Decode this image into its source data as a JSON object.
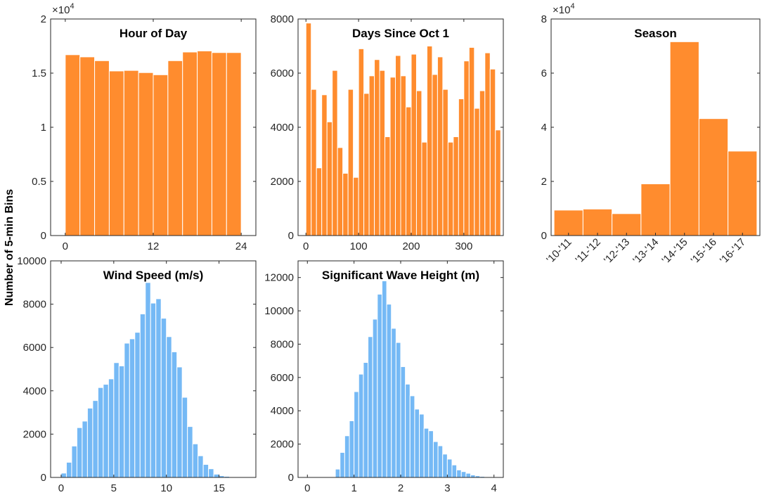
{
  "shared_ylabel": "Number of 5-min Bins",
  "colors": {
    "orange": "#FF8C2E",
    "blue": "#75B9F5",
    "axis": "#262626"
  },
  "chart_data": [
    {
      "id": "hour",
      "type": "bar",
      "title": "Hour of Day",
      "xlim": [
        -2,
        26
      ],
      "ylim": [
        0,
        20000
      ],
      "multiplier_label": "×10",
      "multiplier_exp": "4",
      "xticks": [
        0,
        12,
        24
      ],
      "xtick_labels": [
        "0",
        "12",
        "24"
      ],
      "yticks": [
        0,
        5000,
        10000,
        15000,
        20000
      ],
      "ytick_labels": [
        "0",
        "0.5",
        "1",
        "1.5",
        "2"
      ],
      "bin_width": 2,
      "bin_centers": [
        1,
        3,
        5,
        7,
        9,
        11,
        13,
        15,
        17,
        19,
        21,
        23
      ],
      "values": [
        16700,
        16500,
        16150,
        15200,
        15250,
        15050,
        14850,
        16150,
        16950,
        17050,
        16900,
        16900
      ],
      "color": "orange"
    },
    {
      "id": "days",
      "type": "bar",
      "title": "Days Since Oct 1",
      "xlim": [
        -15,
        375
      ],
      "ylim": [
        0,
        8000
      ],
      "xticks": [
        0,
        100,
        200,
        300
      ],
      "xtick_labels": [
        "0",
        "100",
        "200",
        "300"
      ],
      "yticks": [
        0,
        2000,
        4000,
        6000,
        8000
      ],
      "ytick_labels": [
        "0",
        "2000",
        "4000",
        "6000",
        "8000"
      ],
      "bin_width": 10,
      "bin_centers": [
        5,
        15,
        25,
        35,
        45,
        55,
        65,
        75,
        85,
        95,
        105,
        115,
        125,
        135,
        145,
        155,
        165,
        175,
        185,
        195,
        205,
        215,
        225,
        235,
        245,
        255,
        265,
        275,
        285,
        295,
        305,
        315,
        325,
        335,
        345,
        355,
        365
      ],
      "values": [
        7850,
        5400,
        2500,
        5200,
        4200,
        6100,
        3250,
        2300,
        5400,
        2150,
        6900,
        5250,
        5900,
        6500,
        6100,
        3650,
        5850,
        6650,
        5900,
        4750,
        6700,
        5350,
        3450,
        7000,
        5950,
        6600,
        5400,
        3450,
        3650,
        5050,
        6450,
        6950,
        4700,
        5350,
        6750,
        6150,
        3900
      ],
      "color": "orange"
    },
    {
      "id": "season",
      "type": "bar",
      "title": "Season",
      "xlim": [
        0.4,
        7.6
      ],
      "ylim": [
        0,
        80000
      ],
      "multiplier_label": "×10",
      "multiplier_exp": "4",
      "categories": [
        "'10-'11",
        "'11-'12",
        "'12-'13",
        "'13-'14",
        "'14-'15",
        "'15-'16",
        "'16-'17"
      ],
      "yticks": [
        0,
        20000,
        40000,
        60000,
        80000
      ],
      "ytick_labels": [
        "0",
        "2",
        "4",
        "6",
        "8"
      ],
      "values": [
        9400,
        9800,
        8100,
        19100,
        71600,
        43200,
        31200
      ],
      "color": "orange"
    },
    {
      "id": "wind",
      "type": "bar",
      "title": "Wind Speed (m/s)",
      "xlim": [
        -1,
        18.5
      ],
      "ylim": [
        0,
        10000
      ],
      "xticks": [
        0,
        5,
        10,
        15
      ],
      "xtick_labels": [
        "0",
        "5",
        "10",
        "15"
      ],
      "yticks": [
        0,
        2000,
        4000,
        6000,
        8000,
        10000
      ],
      "ytick_labels": [
        "0",
        "2000",
        "4000",
        "6000",
        "8000",
        "10000"
      ],
      "bin_width": 0.5,
      "bin_centers": [
        0.25,
        0.75,
        1.25,
        1.75,
        2.25,
        2.75,
        3.25,
        3.75,
        4.25,
        4.75,
        5.25,
        5.75,
        6.25,
        6.75,
        7.25,
        7.75,
        8.25,
        8.75,
        9.25,
        9.75,
        10.25,
        10.75,
        11.25,
        11.75,
        12.25,
        12.75,
        13.25,
        13.75,
        14.25,
        14.75,
        15.25,
        15.75,
        16.25,
        16.75
      ],
      "values": [
        200,
        700,
        1450,
        2300,
        2600,
        3200,
        3550,
        4150,
        4300,
        4550,
        5300,
        5150,
        6200,
        6400,
        6700,
        7550,
        9000,
        8050,
        8250,
        7350,
        6500,
        5800,
        5100,
        3700,
        2350,
        1550,
        1000,
        600,
        400,
        150,
        80,
        50,
        30,
        20
      ],
      "color": "blue"
    },
    {
      "id": "wave",
      "type": "bar",
      "title": "Significant Wave Height (m)",
      "xlim": [
        -0.2,
        4.2
      ],
      "ylim": [
        0,
        13000
      ],
      "xticks": [
        0,
        1,
        2,
        3,
        4
      ],
      "xtick_labels": [
        "0",
        "1",
        "2",
        "3",
        "4"
      ],
      "yticks": [
        0,
        2000,
        4000,
        6000,
        8000,
        10000,
        12000
      ],
      "ytick_labels": [
        "0",
        "2000",
        "4000",
        "6000",
        "8000",
        "10000",
        "12000"
      ],
      "bin_width": 0.1,
      "bin_centers": [
        0.65,
        0.75,
        0.85,
        0.95,
        1.05,
        1.15,
        1.25,
        1.35,
        1.45,
        1.55,
        1.65,
        1.75,
        1.85,
        1.95,
        2.05,
        2.15,
        2.25,
        2.35,
        2.45,
        2.55,
        2.65,
        2.75,
        2.85,
        2.95,
        3.05,
        3.15,
        3.25,
        3.35,
        3.45,
        3.55,
        3.65,
        3.75
      ],
      "values": [
        500,
        1500,
        2500,
        3400,
        5150,
        6200,
        6900,
        8450,
        9500,
        11000,
        11800,
        10400,
        8950,
        8100,
        6650,
        5600,
        4900,
        4100,
        3800,
        2950,
        2800,
        2150,
        1900,
        1400,
        1100,
        750,
        450,
        350,
        250,
        150,
        100,
        60
      ],
      "color": "blue"
    }
  ]
}
